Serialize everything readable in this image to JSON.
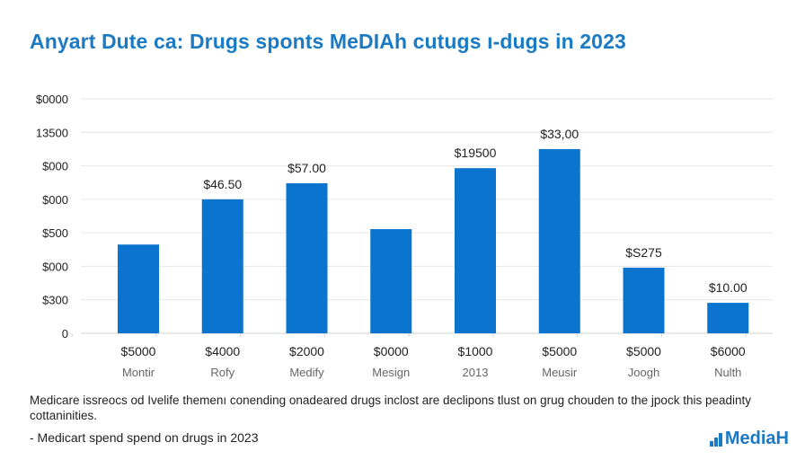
{
  "title": "Anyart Dute ca: Drugs sponts MeDIAh cutugs ı-dugs in 2023",
  "chart_data": {
    "type": "bar",
    "title": "Anyart Dute ca: Drugs sponts MeDIAh cutugs ı-dugs in 2023",
    "xlabel": "",
    "ylabel": "",
    "grid": true,
    "legend": "none",
    "ylim": [
      0,
      7
    ],
    "y_ticks": [
      {
        "value": 0,
        "label": "0"
      },
      {
        "value": 1,
        "label": "$300"
      },
      {
        "value": 2,
        "label": "$000"
      },
      {
        "value": 3,
        "label": "$500"
      },
      {
        "value": 4,
        "label": "$000"
      },
      {
        "value": 5,
        "label": "$000"
      },
      {
        "value": 6,
        "label": "13500"
      },
      {
        "value": 7,
        "label": "$0000"
      }
    ],
    "categories": [
      "Montir",
      "Rofy",
      "Medify",
      "Mesign",
      "2013",
      "Meusir",
      "Joogh",
      "Nulth"
    ],
    "x_value_labels": [
      "$5000",
      "$4000",
      "$2000",
      "$0000",
      "$1000",
      "$5000",
      "$5000",
      "$6000"
    ],
    "values": [
      2.65,
      4.0,
      4.48,
      3.11,
      4.93,
      5.5,
      1.96,
      0.91
    ],
    "data_labels": [
      "",
      "$46.50",
      "$57.00",
      "",
      "$19500",
      "$33,00",
      "$S275",
      "$10.00"
    ],
    "bar_color": "#0a74cf"
  },
  "footnote": "Medicare issreocs od Ivelife themenı conending onadeared drugs inclost are declipons tlust on grug chouden to the jpock this peadinty cottaninities.",
  "bullet": "- Medicart spend spend on drugs in 2023",
  "logo": {
    "icon": "bar-chart-icon",
    "text": "MediaH",
    "color": "#1a7ac4"
  }
}
